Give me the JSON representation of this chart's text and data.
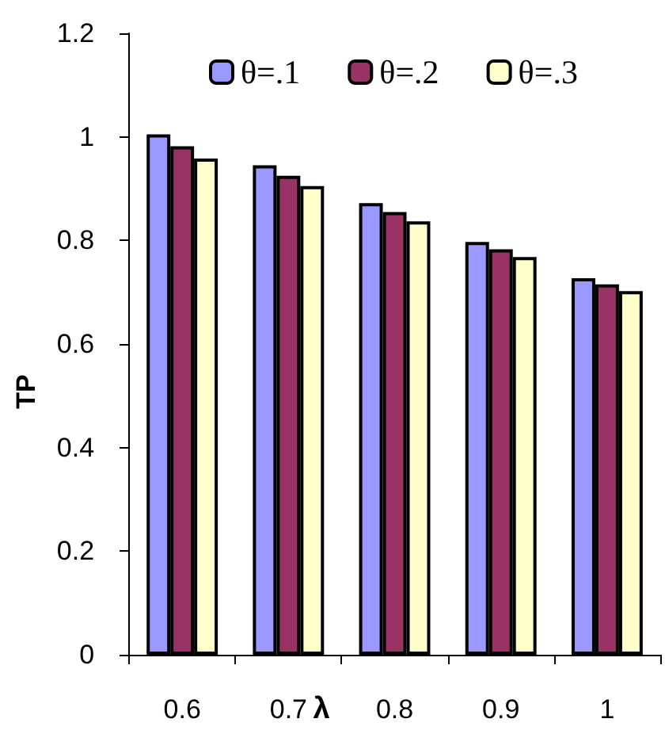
{
  "chart_data": {
    "type": "bar",
    "xlabel": "λ",
    "ylabel": "TP",
    "categories": [
      "0.6",
      "0.7",
      "0.8",
      "0.9",
      "1"
    ],
    "series": [
      {
        "name": "θ=.1",
        "color": "#9999ff",
        "values": [
          1.005,
          0.945,
          0.872,
          0.797,
          0.727
        ]
      },
      {
        "name": "θ=.2",
        "color": "#993366",
        "values": [
          0.982,
          0.925,
          0.855,
          0.783,
          0.715
        ]
      },
      {
        "name": "θ=.3",
        "color": "#ffffcc",
        "values": [
          0.958,
          0.905,
          0.837,
          0.768,
          0.702
        ]
      }
    ],
    "ylim": [
      0,
      1.2
    ],
    "yticks": [
      0,
      0.2,
      0.4,
      0.6,
      0.8,
      1,
      1.2
    ],
    "legend": "top"
  }
}
